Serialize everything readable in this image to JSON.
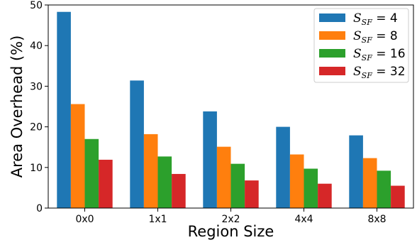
{
  "chart_data": {
    "type": "bar",
    "xlabel": "Region Size",
    "ylabel": "Area Overhead (%)",
    "categories": [
      "0x0",
      "1x1",
      "2x2",
      "4x4",
      "8x8"
    ],
    "ylim": [
      0,
      50
    ],
    "yticks": [
      0,
      10,
      20,
      30,
      40,
      50
    ],
    "grid": false,
    "legend_placement": "top-right",
    "series": [
      {
        "name": "S_SF = 4",
        "sym": "S",
        "sub": "SF",
        "value_text": "4",
        "color": "#1f77b4",
        "values": [
          48.3,
          31.4,
          23.8,
          20.0,
          17.9
        ]
      },
      {
        "name": "S_SF = 8",
        "sym": "S",
        "sub": "SF",
        "value_text": "8",
        "color": "#ff7f0e",
        "values": [
          25.6,
          18.2,
          15.1,
          13.2,
          12.3
        ]
      },
      {
        "name": "S_SF = 16",
        "sym": "S",
        "sub": "SF",
        "value_text": "16",
        "color": "#2ca02c",
        "values": [
          17.0,
          12.7,
          10.9,
          9.7,
          9.2
        ]
      },
      {
        "name": "S_SF = 32",
        "sym": "S",
        "sub": "SF",
        "value_text": "32",
        "color": "#d62728",
        "values": [
          11.9,
          8.4,
          6.8,
          6.0,
          5.5
        ]
      }
    ]
  }
}
